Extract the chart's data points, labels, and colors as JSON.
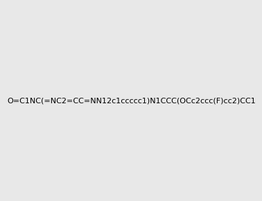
{
  "smiles": "O=C1NC(=NC2=CC=NN12c1ccccc1)N1CCC(OCc2ccc(F)cc2)CC1",
  "title": "",
  "bg_color": "#e8e8e8",
  "img_size": [
    300,
    300
  ]
}
